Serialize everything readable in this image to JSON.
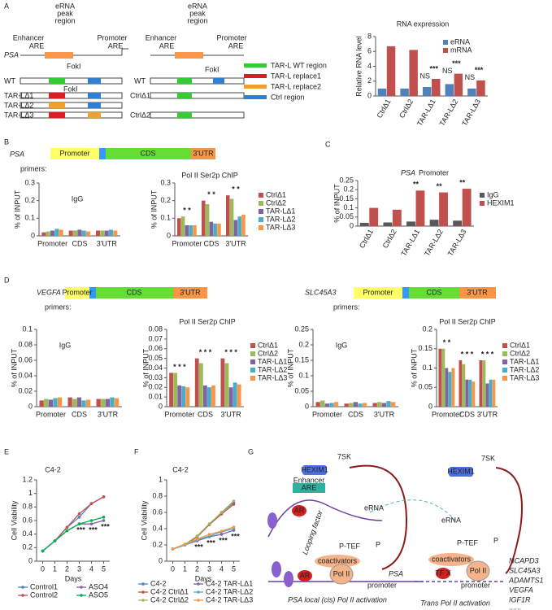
{
  "chart_data": [
    {
      "type": "bar",
      "title": "RNA expression",
      "ylabel": "Relative RNA level",
      "categories": [
        "CtrlΔ1",
        "CtrlΔ2",
        "TAR-LΔ1",
        "TAR-LΔ2",
        "TAR-LΔ3"
      ],
      "series": [
        {
          "name": "eRNA",
          "color": "#4f81bd",
          "values": [
            1.0,
            1.0,
            1.2,
            1.6,
            1.0
          ]
        },
        {
          "name": "mRNA",
          "color": "#c0504d",
          "values": [
            6.7,
            6.2,
            2.3,
            3.0,
            2.1
          ]
        }
      ],
      "ylim": [
        0,
        8
      ],
      "yticks": [
        0,
        2,
        4,
        6,
        8
      ],
      "legend": "upper right",
      "annotations": [
        null,
        null,
        "***",
        "***",
        "***"
      ],
      "annotations_ns": [
        null,
        null,
        "NS",
        "NS",
        "NS"
      ]
    },
    {
      "type": "bar",
      "title": "IgG",
      "ylabel": "% of INPUT",
      "categories": [
        "Promoter",
        "CDS",
        "3'UTR"
      ],
      "series": [
        {
          "color": "#c0504d",
          "values": [
            0.02,
            0.03,
            0.03
          ]
        },
        {
          "color": "#9bbb59",
          "values": [
            0.025,
            0.03,
            0.03
          ]
        },
        {
          "color": "#8064a2",
          "values": [
            0.03,
            0.035,
            0.03
          ]
        },
        {
          "color": "#4bacc6",
          "values": [
            0.04,
            0.03,
            0.035
          ]
        },
        {
          "color": "#f79646",
          "values": [
            0.035,
            0.025,
            0.03
          ]
        }
      ],
      "ylim": [
        0,
        0.3
      ],
      "yticks": [
        0,
        0.1,
        0.2,
        0.3
      ]
    },
    {
      "type": "bar",
      "title": "Pol II Ser2p ChIP",
      "ylabel": "% of INPUT",
      "categories": [
        "Promoter",
        "CDS",
        "3'UTR"
      ],
      "series": [
        {
          "name": "CtrlΔ1",
          "color": "#c0504d",
          "values": [
            0.1,
            0.2,
            0.23
          ]
        },
        {
          "name": "CtrlΔ2",
          "color": "#9bbb59",
          "values": [
            0.11,
            0.18,
            0.21
          ]
        },
        {
          "name": "TAR-LΔ1",
          "color": "#8064a2",
          "values": [
            0.06,
            0.08,
            0.09
          ]
        },
        {
          "name": "TAR-LΔ2",
          "color": "#4bacc6",
          "values": [
            0.06,
            0.07,
            0.11
          ]
        },
        {
          "name": "TAR-LΔ3",
          "color": "#f79646",
          "values": [
            0.06,
            0.07,
            0.12
          ]
        }
      ],
      "ylim": [
        0,
        0.3
      ],
      "yticks": [
        0,
        0.1,
        0.2,
        0.3
      ],
      "legend": "right",
      "annotations": [
        "* *",
        "* *",
        "* *"
      ]
    },
    {
      "type": "bar",
      "title_gene": "PSA",
      "title": "Promoter",
      "ylabel": "% of INPUT",
      "categories": [
        "CtrlΔ1",
        "CtrlΔ2",
        "TAR-LΔ1",
        "TAR-LΔ2",
        "TAR-LΔ3"
      ],
      "series": [
        {
          "name": "IgG",
          "color": "#595959",
          "values": [
            0.018,
            0.02,
            0.025,
            0.035,
            0.03
          ]
        },
        {
          "name": "HEXIM1",
          "color": "#c0504d",
          "values": [
            0.1,
            0.09,
            0.195,
            0.185,
            0.205
          ]
        }
      ],
      "ylim": [
        0,
        0.25
      ],
      "yticks": [
        0,
        0.05,
        0.1,
        0.15,
        0.2,
        0.25
      ],
      "legend": "right",
      "annotations": [
        null,
        null,
        "**",
        "**",
        "**"
      ]
    },
    {
      "type": "bar",
      "title": "IgG",
      "ylabel": "% of INPUT",
      "categories": [
        "Promoter",
        "CDS",
        "3'UTR"
      ],
      "series": [
        {
          "color": "#c0504d",
          "values": [
            0.008,
            0.012,
            0.01
          ]
        },
        {
          "color": "#9bbb59",
          "values": [
            0.01,
            0.01,
            0.01
          ]
        },
        {
          "color": "#8064a2",
          "values": [
            0.009,
            0.012,
            0.01
          ]
        },
        {
          "color": "#4bacc6",
          "values": [
            0.011,
            0.008,
            0.012
          ]
        },
        {
          "color": "#f79646",
          "values": [
            0.012,
            0.009,
            0.011
          ]
        }
      ],
      "ylim": [
        0,
        0.1
      ],
      "yticks": [
        0,
        0.02,
        0.04,
        0.06,
        0.08,
        0.1
      ]
    },
    {
      "type": "bar",
      "title": "Pol II Ser2p ChIP",
      "ylabel": "% of INPUT",
      "categories": [
        "Promoter",
        "CDS",
        "3'UTR"
      ],
      "series": [
        {
          "name": "CtrlΔ1",
          "color": "#c0504d",
          "values": [
            0.035,
            0.05,
            0.05
          ]
        },
        {
          "name": "CtrlΔ2",
          "color": "#9bbb59",
          "values": [
            0.035,
            0.045,
            0.045
          ]
        },
        {
          "name": "TAR-LΔ1",
          "color": "#8064a2",
          "values": [
            0.022,
            0.022,
            0.02
          ]
        },
        {
          "name": "TAR-LΔ2",
          "color": "#4bacc6",
          "values": [
            0.021,
            0.02,
            0.025
          ]
        },
        {
          "name": "TAR-LΔ3",
          "color": "#f79646",
          "values": [
            0.02,
            0.022,
            0.023
          ]
        }
      ],
      "ylim": [
        0,
        0.08
      ],
      "yticks": [
        0,
        0.01,
        0.02,
        0.03,
        0.04,
        0.05,
        0.06,
        0.07,
        0.08
      ],
      "legend": "right",
      "annotations": [
        "* * *",
        "* * *",
        "* * *"
      ]
    },
    {
      "type": "bar",
      "title": "IgG",
      "ylabel": "% of INPUT",
      "categories": [
        "Promoter",
        "CDS",
        "3'UTR"
      ],
      "series": [
        {
          "color": "#c0504d",
          "values": [
            0.015,
            0.01,
            0.012
          ]
        },
        {
          "color": "#9bbb59",
          "values": [
            0.02,
            0.012,
            0.015
          ]
        },
        {
          "color": "#8064a2",
          "values": [
            0.01,
            0.015,
            0.012
          ]
        },
        {
          "color": "#4bacc6",
          "values": [
            0.012,
            0.01,
            0.018
          ]
        },
        {
          "color": "#f79646",
          "values": [
            0.015,
            0.012,
            0.015
          ]
        }
      ],
      "ylim": [
        0,
        0.25
      ],
      "yticks": [
        0,
        0.05,
        0.1,
        0.15,
        0.2,
        0.25
      ]
    },
    {
      "type": "bar",
      "title": "Pol II Ser2p ChIP",
      "ylabel": "% of INPUT",
      "categories": [
        "Promoter",
        "CDS",
        "3'UTR"
      ],
      "series": [
        {
          "name": "CtrlΔ1",
          "color": "#c0504d",
          "values": [
            0.15,
            0.12,
            0.12
          ]
        },
        {
          "name": "CtrlΔ2",
          "color": "#9bbb59",
          "values": [
            0.15,
            0.11,
            0.12
          ]
        },
        {
          "name": "TAR-LΔ1",
          "color": "#8064a2",
          "values": [
            0.1,
            0.07,
            0.06
          ]
        },
        {
          "name": "TAR-LΔ2",
          "color": "#4bacc6",
          "values": [
            0.09,
            0.07,
            0.07
          ]
        },
        {
          "name": "TAR-LΔ3",
          "color": "#f79646",
          "values": [
            0.1,
            0.065,
            0.07
          ]
        }
      ],
      "ylim": [
        0,
        0.2
      ],
      "yticks": [
        0,
        0.05,
        0.1,
        0.15,
        0.2
      ],
      "legend": "right",
      "annotations": [
        "* *",
        "* * *",
        "* * *"
      ]
    },
    {
      "type": "line",
      "title": "C4-2",
      "xlabel": "Days",
      "ylabel": "Cell Viability",
      "x": [
        0,
        1,
        2,
        3,
        4,
        5
      ],
      "xlim": [
        -0.5,
        5.5
      ],
      "xticks": [
        0,
        1,
        2,
        3,
        4,
        5
      ],
      "ylim": [
        0,
        1.2
      ],
      "yticks": [
        0,
        0.2,
        0.4,
        0.6,
        0.8,
        1,
        1.2
      ],
      "series": [
        {
          "name": "Control1",
          "color": "#4f81bd",
          "values": [
            0.15,
            0.3,
            0.5,
            0.65,
            0.85,
            0.95
          ]
        },
        {
          "name": "Control2",
          "color": "#c0504d",
          "values": [
            0.15,
            0.3,
            0.5,
            0.7,
            0.85,
            0.95
          ]
        },
        {
          "name": "ASO4",
          "color": "#8064a2",
          "values": [
            0.15,
            0.3,
            0.45,
            0.55,
            0.55,
            0.6
          ]
        },
        {
          "name": "ASO5",
          "color": "#00b050",
          "values": [
            0.15,
            0.3,
            0.45,
            0.55,
            0.6,
            0.65
          ]
        }
      ],
      "legend": "bottom",
      "annotations": [
        null,
        null,
        null,
        "***",
        "***",
        "***"
      ]
    },
    {
      "type": "line",
      "title": "C4-2",
      "xlabel": "Days",
      "ylabel": "Cell Viability",
      "x": [
        0,
        1,
        2,
        3,
        4,
        5
      ],
      "xlim": [
        -0.5,
        5.5
      ],
      "xticks": [
        0,
        1,
        2,
        3,
        4,
        5
      ],
      "ylim": [
        0,
        1
      ],
      "yticks": [
        0,
        0.2,
        0.4,
        0.6,
        0.8,
        1
      ],
      "series": [
        {
          "name": "C4-2",
          "color": "#4f81bd",
          "values": [
            0.15,
            0.2,
            0.3,
            0.45,
            0.6,
            0.72
          ]
        },
        {
          "name": "C4-2 CtrlΔ1",
          "color": "#c0504d",
          "values": [
            0.15,
            0.2,
            0.3,
            0.45,
            0.58,
            0.7
          ]
        },
        {
          "name": "C4-2 CtrlΔ2",
          "color": "#9bbb59",
          "values": [
            0.15,
            0.21,
            0.31,
            0.46,
            0.6,
            0.74
          ]
        },
        {
          "name": "C4-2 TAR-LΔ1",
          "color": "#8064a2",
          "values": [
            0.15,
            0.2,
            0.25,
            0.3,
            0.33,
            0.38
          ]
        },
        {
          "name": "C4-2 TAR-LΔ2",
          "color": "#4bacc6",
          "values": [
            0.15,
            0.2,
            0.26,
            0.31,
            0.36,
            0.4
          ]
        },
        {
          "name": "C4-2 TAR-LΔ3",
          "color": "#f79646",
          "values": [
            0.15,
            0.21,
            0.27,
            0.33,
            0.37,
            0.42
          ]
        }
      ],
      "legend": "bottom",
      "annotations": [
        null,
        null,
        "***",
        "***",
        "***",
        "***"
      ]
    }
  ],
  "diagrams": {
    "panel_labels": [
      "A",
      "B",
      "C",
      "D",
      "E",
      "F",
      "G"
    ],
    "a_left": [
      "Enhancer",
      "ARE",
      "eRNA",
      "peak",
      "region",
      "Promoter",
      "ARE",
      "PSA",
      "WT",
      "FokI",
      "FokI",
      "TAR-LΔ1",
      "TAR-LΔ2",
      "TAR-LΔ3"
    ],
    "a_right": [
      "Enhancer",
      "ARE",
      "eRNA",
      "peak",
      "region",
      "Promoter",
      "ARE",
      "WT",
      "FokI",
      "CtrlΔ1",
      "CtrlΔ2"
    ],
    "a_legend": [
      "TAR-L WT region",
      "TAR-L replace1",
      "TAR-L replace2",
      "Ctrl region"
    ],
    "b": [
      "PSA",
      "Promoter",
      "CDS",
      "3'UTR",
      "primers:"
    ],
    "d_vegfa": [
      "VEGFA",
      "Promoter",
      "CDS",
      "3'UTR",
      "primers:"
    ],
    "d_slc": [
      "SLC45A3",
      "Promoter",
      "CDS",
      "3'UTR",
      "primers:"
    ],
    "g_left": [
      "7SK",
      "HEXIM1",
      "Enhancer",
      "ARE",
      "AR",
      "eRNA",
      "Looping factor",
      "P-TEF",
      "P",
      "coactivators",
      "AR",
      "Pol II",
      "promoter",
      "PSA",
      "PSA local (cis) Pol II activation"
    ],
    "g_right": [
      "7SK",
      "HEXIM1",
      "eRNA",
      "P-TEF",
      "P",
      "coactivators",
      "TF X",
      "Pol II",
      "promoter",
      "NCAPD3",
      "SLC45A3",
      "ADAMTS1",
      "VEGFA",
      "IGF1R",
      "......",
      "Trans Pol II activation"
    ]
  }
}
